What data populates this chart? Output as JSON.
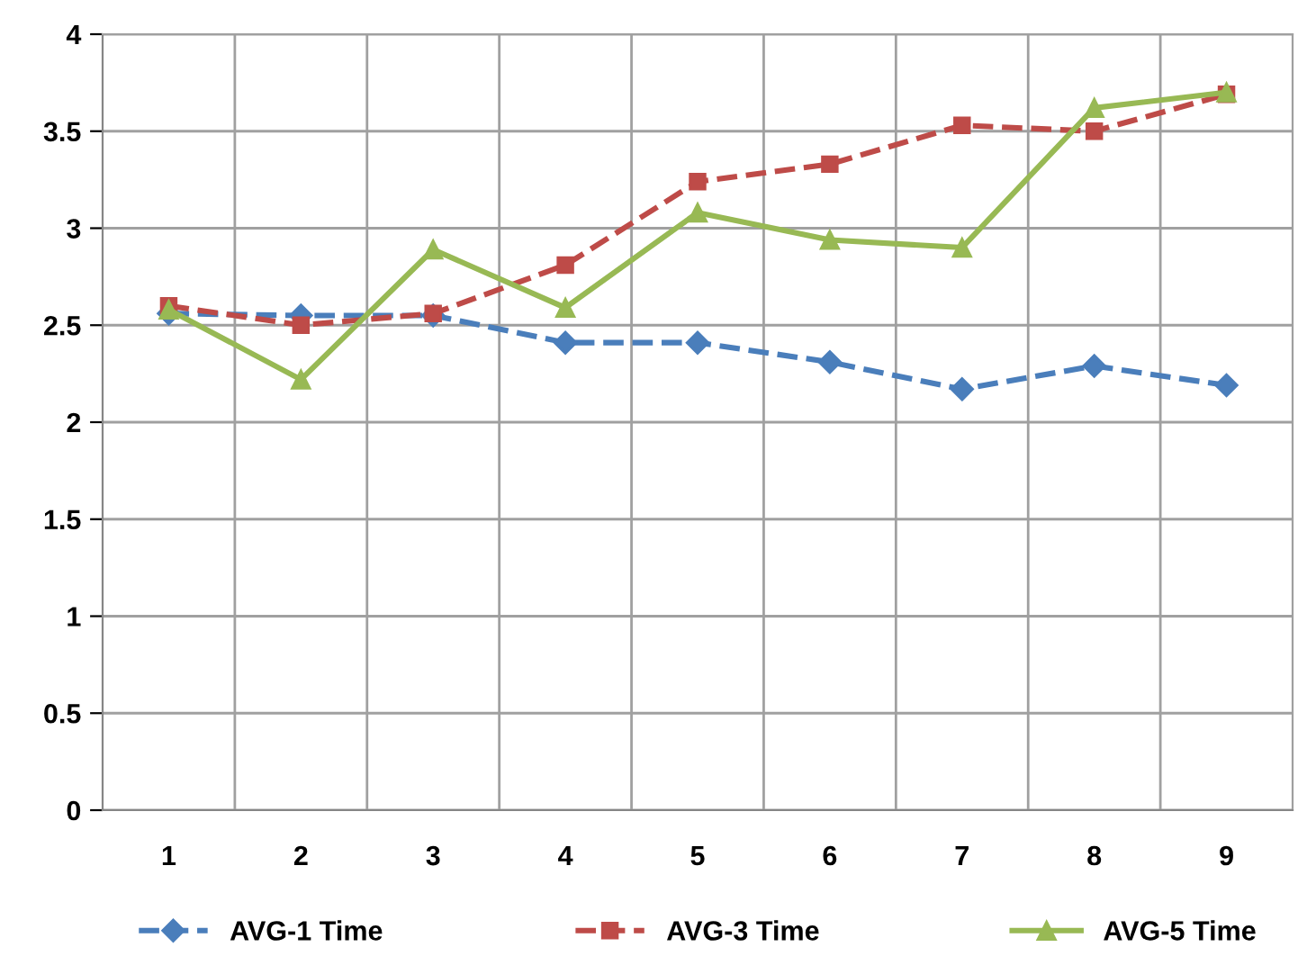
{
  "chart_data": {
    "type": "line",
    "categories": [
      "1",
      "2",
      "3",
      "4",
      "5",
      "6",
      "7",
      "8",
      "9"
    ],
    "series": [
      {
        "name": "AVG-1 Time",
        "color": "#4a7ebb",
        "marker": "diamond",
        "line_style": "dashed",
        "values": [
          2.56,
          2.55,
          2.55,
          2.41,
          2.41,
          2.31,
          2.17,
          2.29,
          2.19
        ]
      },
      {
        "name": "AVG-3 Time",
        "color": "#be4b48",
        "marker": "square",
        "line_style": "dashed",
        "values": [
          2.6,
          2.5,
          2.56,
          2.81,
          3.24,
          3.33,
          3.53,
          3.5,
          3.69
        ]
      },
      {
        "name": "AVG-5 Time",
        "color": "#98b954",
        "marker": "triangle",
        "line_style": "solid",
        "values": [
          2.58,
          2.22,
          2.89,
          2.59,
          3.08,
          2.94,
          2.9,
          3.62,
          3.7
        ]
      }
    ],
    "ylim": [
      0,
      4
    ],
    "yticks": [
      0,
      0.5,
      1,
      1.5,
      2,
      2.5,
      3,
      3.5,
      4
    ],
    "grid": true,
    "legend": "bottom"
  }
}
